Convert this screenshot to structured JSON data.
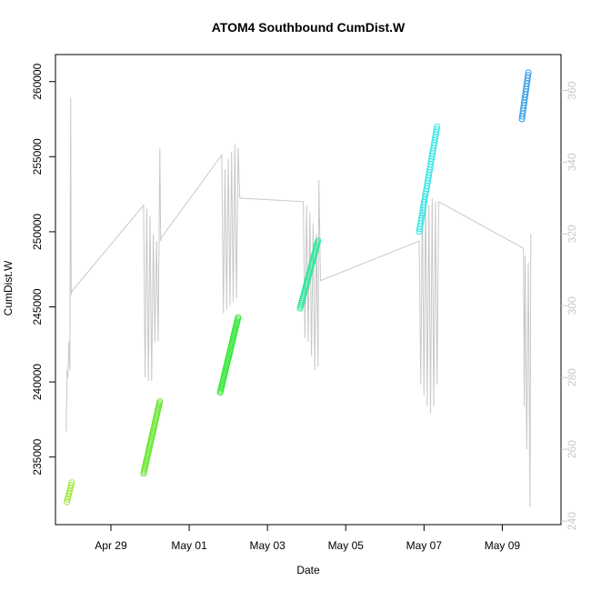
{
  "chart_data": {
    "type": "scatter",
    "title": "ATOM4 Southbound CumDist.W",
    "xlabel": "Date",
    "ylabel": "CumDist.W",
    "x_range": [
      "2024-04-27T14:00",
      "2024-05-10T12:00"
    ],
    "x_ticks": [
      {
        "date": "2024-04-29",
        "label": "Apr 29"
      },
      {
        "date": "2024-05-01",
        "label": "May 01"
      },
      {
        "date": "2024-05-03",
        "label": "May 03"
      },
      {
        "date": "2024-05-05",
        "label": "May 05"
      },
      {
        "date": "2024-05-07",
        "label": "May 07"
      },
      {
        "date": "2024-05-09",
        "label": "May 09"
      }
    ],
    "y_left": {
      "range": [
        230500,
        261800
      ],
      "ticks": [
        235000,
        240000,
        245000,
        250000,
        255000,
        260000
      ]
    },
    "y_right": {
      "range": [
        239,
        370
      ],
      "ticks": [
        240,
        260,
        280,
        300,
        320,
        340,
        360
      ],
      "color": "#c8c8c8"
    },
    "grid": false,
    "series": [
      {
        "kind": "points",
        "axis": "left",
        "groups": [
          {
            "color": "#99e62e",
            "start": "2024-04-27T21:00",
            "end": "2024-04-28T00:00",
            "y_start": 232000,
            "y_end": 233300,
            "n": 8
          },
          {
            "color": "#66e62e",
            "start": "2024-04-29T20:00",
            "end": "2024-04-30T06:00",
            "y_start": 233900,
            "y_end": 238700,
            "n": 40
          },
          {
            "color": "#2ee633",
            "start": "2024-05-01T19:00",
            "end": "2024-05-02T06:00",
            "y_start": 239300,
            "y_end": 244300,
            "n": 40
          },
          {
            "color": "#2ee69d",
            "start": "2024-05-03T20:00",
            "end": "2024-05-04T07:00",
            "y_start": 244900,
            "y_end": 249400,
            "n": 40
          },
          {
            "color": "#2ee6e6",
            "start": "2024-05-06T21:00",
            "end": "2024-05-07T08:00",
            "y_start": 250000,
            "y_end": 257000,
            "n": 40
          },
          {
            "color": "#2e9ae6",
            "start": "2024-05-09T12:00",
            "end": "2024-05-09T16:00",
            "y_start": 257500,
            "y_end": 260600,
            "n": 18
          }
        ]
      },
      {
        "kind": "line",
        "axis": "right",
        "color": "#c8c8c8",
        "points": [
          [
            "2024-04-27T20:30",
            265
          ],
          [
            "2024-04-27T21:10",
            282
          ],
          [
            "2024-04-27T21:30",
            280
          ],
          [
            "2024-04-27T22:20",
            290
          ],
          [
            "2024-04-27T22:50",
            282
          ],
          [
            "2024-04-27T23:20",
            358
          ],
          [
            "2024-04-27T23:40",
            303
          ],
          [
            "2024-04-28T00:00",
            304
          ],
          [
            "2024-04-29T20:00",
            328
          ],
          [
            "2024-04-29T21:00",
            280
          ],
          [
            "2024-04-29T22:00",
            327
          ],
          [
            "2024-04-29T23:00",
            279
          ],
          [
            "2024-04-30T00:00",
            325
          ],
          [
            "2024-04-30T01:00",
            279
          ],
          [
            "2024-04-30T02:00",
            320
          ],
          [
            "2024-04-30T03:00",
            290
          ],
          [
            "2024-04-30T04:00",
            318
          ],
          [
            "2024-04-30T05:00",
            290
          ],
          [
            "2024-04-30T06:00",
            344
          ],
          [
            "2024-04-30T06:30",
            318
          ],
          [
            "2024-04-30T07:00",
            319
          ],
          [
            "2024-05-01T20:00",
            342
          ],
          [
            "2024-05-01T21:00",
            298
          ],
          [
            "2024-05-01T22:00",
            338
          ],
          [
            "2024-05-01T23:00",
            299
          ],
          [
            "2024-05-02T00:00",
            341
          ],
          [
            "2024-05-02T01:00",
            300
          ],
          [
            "2024-05-02T02:00",
            343
          ],
          [
            "2024-05-02T03:00",
            301
          ],
          [
            "2024-05-02T04:00",
            345
          ],
          [
            "2024-05-02T05:00",
            302
          ],
          [
            "2024-05-02T06:00",
            344
          ],
          [
            "2024-05-02T07:00",
            330
          ],
          [
            "2024-05-03T22:00",
            329
          ],
          [
            "2024-05-03T23:00",
            291
          ],
          [
            "2024-05-04T00:00",
            328
          ],
          [
            "2024-05-04T01:00",
            290
          ],
          [
            "2024-05-04T02:00",
            326
          ],
          [
            "2024-05-04T03:00",
            286
          ],
          [
            "2024-05-04T04:00",
            323
          ],
          [
            "2024-05-04T05:00",
            282
          ],
          [
            "2024-05-04T06:00",
            320
          ],
          [
            "2024-05-04T07:00",
            283
          ],
          [
            "2024-05-04T07:30",
            335
          ],
          [
            "2024-05-04T08:30",
            307
          ],
          [
            "2024-05-06T21:00",
            318
          ],
          [
            "2024-05-06T22:00",
            278
          ],
          [
            "2024-05-06T23:00",
            330
          ],
          [
            "2024-05-07T00:00",
            275
          ],
          [
            "2024-05-07T01:00",
            331
          ],
          [
            "2024-05-07T02:00",
            272
          ],
          [
            "2024-05-07T03:00",
            328
          ],
          [
            "2024-05-07T04:00",
            270
          ],
          [
            "2024-05-07T05:00",
            330
          ],
          [
            "2024-05-07T06:00",
            272
          ],
          [
            "2024-05-07T07:00",
            329
          ],
          [
            "2024-05-07T08:00",
            278
          ],
          [
            "2024-05-07T09:00",
            329
          ],
          [
            "2024-05-09T13:00",
            316
          ],
          [
            "2024-05-09T13:30",
            272
          ],
          [
            "2024-05-09T14:00",
            314
          ],
          [
            "2024-05-09T15:00",
            260
          ],
          [
            "2024-05-09T16:00",
            312
          ],
          [
            "2024-05-09T17:00",
            244
          ],
          [
            "2024-05-09T17:30",
            320
          ]
        ]
      }
    ]
  }
}
